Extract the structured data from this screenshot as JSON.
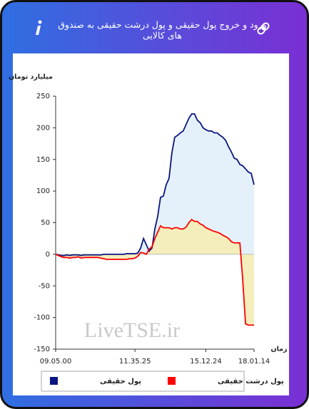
{
  "header": {
    "title": "ورود و خروج پول حقیقی و پول درشت حقیقی به صندوق های کالایی"
  },
  "chart_data": {
    "type": "line",
    "y_label": "میلیارد تومان",
    "x_label": "زمان",
    "watermark": "LiveTSE.ir",
    "categories": [
      "09.05.00",
      null,
      null,
      null,
      null,
      null,
      null,
      null,
      null,
      null,
      null,
      null,
      null,
      null,
      null,
      null,
      null,
      null,
      null,
      null,
      null,
      null,
      null,
      null,
      null,
      null,
      null,
      null,
      "11.35.25",
      null,
      null,
      null,
      null,
      null,
      null,
      null,
      null,
      null,
      null,
      null,
      null,
      null,
      null,
      null,
      null,
      null,
      null,
      null,
      null,
      null,
      null,
      null,
      null,
      "15.12.24",
      null,
      null,
      null,
      null,
      null,
      null,
      null,
      null,
      null,
      null,
      null,
      null,
      null,
      null,
      null,
      null,
      "18.01.14"
    ],
    "series": [
      {
        "name": "پول حقیقی",
        "color": "#0a1580",
        "fill": "#e4f1fa",
        "values": [
          0,
          -1,
          -2,
          -2,
          -1,
          -2,
          -1,
          -1,
          -1,
          -2,
          -1,
          -1,
          -1,
          -1,
          -1,
          -1,
          -1,
          0,
          0,
          0,
          0,
          0,
          0,
          0,
          0,
          1,
          1,
          1,
          1,
          2,
          10,
          25,
          15,
          5,
          10,
          40,
          60,
          90,
          92,
          110,
          120,
          160,
          185,
          188,
          192,
          195,
          205,
          215,
          222,
          222,
          212,
          208,
          200,
          197,
          195,
          195,
          192,
          192,
          188,
          185,
          180,
          170,
          162,
          152,
          150,
          142,
          140,
          135,
          130,
          128,
          110
        ]
      },
      {
        "name": "پول درشت حقیقی",
        "color": "#ff0000",
        "fill": "#f4eebc",
        "values": [
          0,
          -2,
          -4,
          -5,
          -5,
          -6,
          -5,
          -5,
          -4,
          -6,
          -5,
          -5,
          -5,
          -5,
          -5,
          -5,
          -6,
          -7,
          -8,
          -8,
          -8,
          -8,
          -8,
          -8,
          -8,
          -8,
          -7,
          -7,
          -6,
          -3,
          3,
          2,
          0,
          8,
          12,
          25,
          35,
          45,
          42,
          42,
          42,
          40,
          42,
          42,
          40,
          40,
          43,
          50,
          55,
          52,
          52,
          48,
          46,
          42,
          40,
          38,
          36,
          35,
          33,
          30,
          28,
          25,
          20,
          18,
          18,
          18,
          -40,
          -110,
          -112,
          -112,
          -112
        ]
      }
    ],
    "ylim": [
      -150,
      250
    ],
    "yticks": [
      -150,
      -100,
      -50,
      0,
      50,
      100,
      150,
      200,
      250
    ]
  }
}
